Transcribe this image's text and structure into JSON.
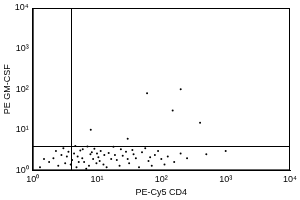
{
  "chart_data": {
    "type": "scatter",
    "x_label": "PE-Cy5 CD4",
    "y_label": "PE GM-CSF",
    "log": true,
    "grid": false,
    "color": "#000000",
    "marker": "dot",
    "xlim": [
      1,
      10000
    ],
    "ylim": [
      1,
      10000
    ],
    "xticks": [
      {
        "value": 1,
        "label": "10⁰"
      },
      {
        "value": 10,
        "label": "10¹"
      },
      {
        "value": 100,
        "label": "10²"
      },
      {
        "value": 1000,
        "label": "10³"
      },
      {
        "value": 10000,
        "label": "10⁴"
      }
    ],
    "yticks": [
      {
        "value": 1,
        "label": "10⁰"
      },
      {
        "value": 10,
        "label": "10¹"
      },
      {
        "value": 100,
        "label": "10²"
      },
      {
        "value": 1000,
        "label": "10³"
      },
      {
        "value": 10000,
        "label": "10⁴"
      }
    ],
    "gates": {
      "x": 4,
      "y": 4
    },
    "x": [
      3.2,
      4.1,
      5.0,
      2.5,
      6.3,
      7.9,
      3.6,
      4.8,
      5.5,
      8.7,
      10.5,
      12.6,
      15.2,
      9.1,
      6.8,
      2.1,
      1.8,
      3.0,
      4.4,
      11.4,
      20.3,
      25.1,
      31.6,
      40.2,
      50.1,
      63.1,
      79.4,
      100.0,
      125.9,
      158.5,
      199.5,
      251.2,
      35.5,
      18.0,
      14.1,
      22.4,
      28.2,
      45.0,
      56.2,
      71.0,
      7.1,
      5.9,
      3.9,
      2.8,
      1.5,
      13.0,
      16.6,
      9.8,
      8.3,
      6.0,
      4.6,
      11.0,
      23.5,
      37.0,
      89.0,
      112.0,
      67.0,
      2.3,
      3.4,
      5.2,
      7.5,
      10.0,
      1.3,
      19.0,
      30.0,
      60.0,
      150.0,
      400.0,
      8.0,
      1000.0,
      30.0,
      200.0,
      500.0
    ],
    "values": [
      1.5,
      1.8,
      2.2,
      1.3,
      1.6,
      2.5,
      2.9,
      1.2,
      3.1,
      1.9,
      2.1,
      1.4,
      2.7,
      3.4,
      1.1,
      2.0,
      1.6,
      3.5,
      2.6,
      3.0,
      1.8,
      2.3,
      1.5,
      2.0,
      2.8,
      1.7,
      2.4,
      1.9,
      2.2,
      1.6,
      2.6,
      2.0,
      3.2,
      3.8,
      1.2,
      1.3,
      2.9,
      1.2,
      3.5,
      1.3,
      3.9,
      2.0,
      1.4,
      2.4,
      1.9,
      2.4,
      1.9,
      1.5,
      2.8,
      3.3,
      4.0,
      1.7,
      3.3,
      2.5,
      3.0,
      1.4,
      2.1,
      3.0,
      2.2,
      1.6,
      1.3,
      2.6,
      1.2,
      2.4,
      1.9,
      80.0,
      30.0,
      15.0,
      10.0,
      3.0,
      6.0,
      100.0,
      2.5
    ]
  }
}
